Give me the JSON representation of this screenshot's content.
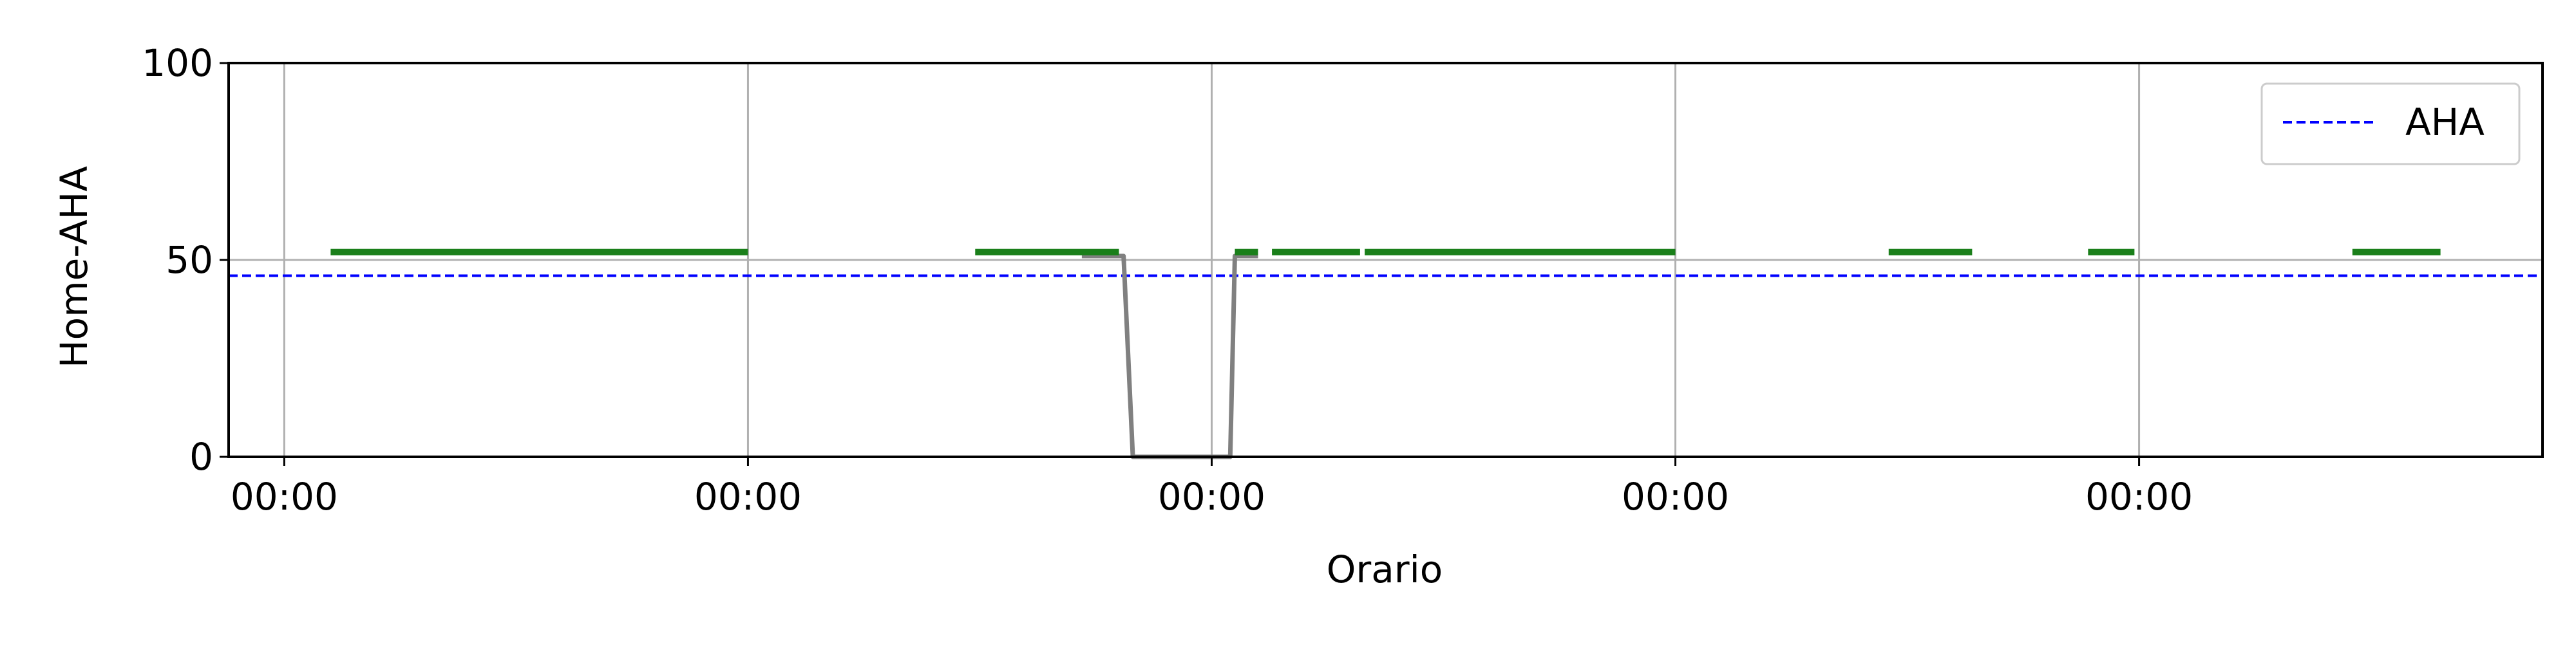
{
  "chart_data": {
    "type": "line",
    "xlabel": "Orario",
    "ylabel": "Home-AHA",
    "ylim": [
      0,
      100
    ],
    "xlim": [
      -0.12,
      4.87
    ],
    "x_ticks": [
      0,
      1,
      2,
      3,
      4
    ],
    "x_tick_labels": [
      "00:00",
      "00:00",
      "00:00",
      "00:00",
      "00:00"
    ],
    "y_ticks": [
      0,
      50,
      100
    ],
    "y_tick_labels": [
      "0",
      "50",
      "100"
    ],
    "grid": true,
    "legend_position": "top-right",
    "threshold": {
      "name": "AHA",
      "value": 46,
      "color": "#0000ff",
      "style": "dashed"
    },
    "series": [
      {
        "role": "trace",
        "color": "#808080",
        "points": [
          {
            "x": 1.72,
            "y": 51
          },
          {
            "x": 1.81,
            "y": 51
          },
          {
            "x": 1.83,
            "y": 0
          },
          {
            "x": 2.04,
            "y": 0
          },
          {
            "x": 2.05,
            "y": 51
          },
          {
            "x": 2.1,
            "y": 51
          }
        ]
      },
      {
        "role": "segments",
        "color": "#1a7f1a",
        "segments": [
          {
            "x0": 0.1,
            "x1": 1.0,
            "y": 52
          },
          {
            "x0": 1.49,
            "x1": 1.8,
            "y": 52
          },
          {
            "x0": 2.05,
            "x1": 2.1,
            "y": 52
          },
          {
            "x0": 2.13,
            "x1": 2.32,
            "y": 52
          },
          {
            "x0": 2.33,
            "x1": 3.0,
            "y": 52
          },
          {
            "x0": 3.46,
            "x1": 3.64,
            "y": 52
          },
          {
            "x0": 3.89,
            "x1": 3.99,
            "y": 52
          },
          {
            "x0": 4.46,
            "x1": 4.65,
            "y": 52
          }
        ]
      }
    ]
  }
}
